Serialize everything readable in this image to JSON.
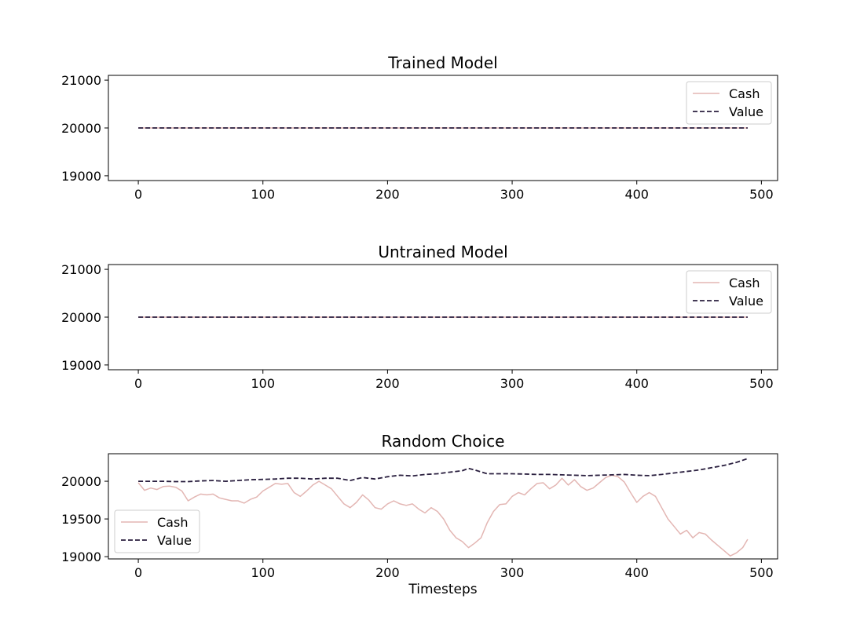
{
  "colors": {
    "cash": "#e3b6b3",
    "value": "#2a1f3f"
  },
  "chart_data": [
    {
      "type": "line",
      "title": "Trained Model",
      "xlabel": "",
      "ylabel": "",
      "xlim": [
        -24,
        513
      ],
      "ylim": [
        18900,
        21100
      ],
      "xticks": [
        0,
        100,
        200,
        300,
        400,
        500
      ],
      "yticks": [
        19000,
        20000,
        21000
      ],
      "legend": "upper right",
      "series": [
        {
          "name": "Cash",
          "style": "solid",
          "points": [
            [
              0,
              20000
            ],
            [
              489,
              20000
            ]
          ]
        },
        {
          "name": "Value",
          "style": "dashed",
          "points": [
            [
              0,
              20000
            ],
            [
              489,
              20000
            ]
          ]
        }
      ]
    },
    {
      "type": "line",
      "title": "Untrained Model",
      "xlabel": "",
      "ylabel": "",
      "xlim": [
        -24,
        513
      ],
      "ylim": [
        18900,
        21100
      ],
      "xticks": [
        0,
        100,
        200,
        300,
        400,
        500
      ],
      "yticks": [
        19000,
        20000,
        21000
      ],
      "legend": "upper right",
      "series": [
        {
          "name": "Cash",
          "style": "solid",
          "points": [
            [
              0,
              20000
            ],
            [
              489,
              20000
            ]
          ]
        },
        {
          "name": "Value",
          "style": "dashed",
          "points": [
            [
              0,
              20000
            ],
            [
              489,
              20000
            ]
          ]
        }
      ]
    },
    {
      "type": "line",
      "title": "Random Choice",
      "xlabel": "Timesteps",
      "ylabel": "",
      "xlim": [
        -24,
        513
      ],
      "ylim": [
        18970,
        20365
      ],
      "xticks": [
        0,
        100,
        200,
        300,
        400,
        500
      ],
      "yticks": [
        19000,
        19500,
        20000
      ],
      "legend": "lower left",
      "series": [
        {
          "name": "Cash",
          "style": "solid",
          "points": [
            [
              0,
              19980
            ],
            [
              5,
              19880
            ],
            [
              10,
              19910
            ],
            [
              15,
              19890
            ],
            [
              20,
              19930
            ],
            [
              25,
              19935
            ],
            [
              30,
              19920
            ],
            [
              35,
              19870
            ],
            [
              40,
              19740
            ],
            [
              45,
              19790
            ],
            [
              50,
              19830
            ],
            [
              55,
              19820
            ],
            [
              60,
              19830
            ],
            [
              65,
              19780
            ],
            [
              70,
              19760
            ],
            [
              75,
              19740
            ],
            [
              80,
              19740
            ],
            [
              85,
              19710
            ],
            [
              90,
              19760
            ],
            [
              95,
              19790
            ],
            [
              100,
              19870
            ],
            [
              105,
              19920
            ],
            [
              110,
              19970
            ],
            [
              115,
              19960
            ],
            [
              120,
              19970
            ],
            [
              125,
              19850
            ],
            [
              130,
              19800
            ],
            [
              135,
              19870
            ],
            [
              140,
              19950
            ],
            [
              145,
              20000
            ],
            [
              150,
              19950
            ],
            [
              155,
              19900
            ],
            [
              160,
              19800
            ],
            [
              165,
              19700
            ],
            [
              170,
              19650
            ],
            [
              175,
              19720
            ],
            [
              180,
              19820
            ],
            [
              185,
              19750
            ],
            [
              190,
              19650
            ],
            [
              195,
              19630
            ],
            [
              200,
              19700
            ],
            [
              205,
              19740
            ],
            [
              210,
              19700
            ],
            [
              215,
              19680
            ],
            [
              220,
              19700
            ],
            [
              225,
              19630
            ],
            [
              230,
              19580
            ],
            [
              235,
              19650
            ],
            [
              240,
              19600
            ],
            [
              245,
              19500
            ],
            [
              250,
              19350
            ],
            [
              255,
              19250
            ],
            [
              260,
              19200
            ],
            [
              265,
              19120
            ],
            [
              270,
              19180
            ],
            [
              275,
              19250
            ],
            [
              280,
              19450
            ],
            [
              285,
              19600
            ],
            [
              290,
              19690
            ],
            [
              295,
              19700
            ],
            [
              300,
              19800
            ],
            [
              305,
              19850
            ],
            [
              310,
              19820
            ],
            [
              315,
              19900
            ],
            [
              320,
              19970
            ],
            [
              325,
              19980
            ],
            [
              330,
              19900
            ],
            [
              335,
              19950
            ],
            [
              340,
              20040
            ],
            [
              345,
              19950
            ],
            [
              350,
              20020
            ],
            [
              355,
              19930
            ],
            [
              360,
              19880
            ],
            [
              365,
              19910
            ],
            [
              370,
              19980
            ],
            [
              375,
              20050
            ],
            [
              380,
              20080
            ],
            [
              385,
              20060
            ],
            [
              390,
              19990
            ],
            [
              395,
              19850
            ],
            [
              400,
              19720
            ],
            [
              405,
              19800
            ],
            [
              410,
              19850
            ],
            [
              415,
              19800
            ],
            [
              420,
              19650
            ],
            [
              425,
              19500
            ],
            [
              430,
              19400
            ],
            [
              435,
              19300
            ],
            [
              440,
              19350
            ],
            [
              445,
              19250
            ],
            [
              450,
              19320
            ],
            [
              455,
              19300
            ],
            [
              460,
              19220
            ],
            [
              465,
              19150
            ],
            [
              470,
              19080
            ],
            [
              475,
              19010
            ],
            [
              480,
              19050
            ],
            [
              485,
              19120
            ],
            [
              489,
              19230
            ]
          ]
        },
        {
          "name": "Value",
          "style": "dashed",
          "points": [
            [
              0,
              20000
            ],
            [
              10,
              20000
            ],
            [
              20,
              20000
            ],
            [
              30,
              19995
            ],
            [
              40,
              19995
            ],
            [
              50,
              20005
            ],
            [
              60,
              20010
            ],
            [
              70,
              20000
            ],
            [
              80,
              20010
            ],
            [
              90,
              20020
            ],
            [
              100,
              20025
            ],
            [
              110,
              20030
            ],
            [
              120,
              20040
            ],
            [
              130,
              20040
            ],
            [
              140,
              20030
            ],
            [
              150,
              20040
            ],
            [
              160,
              20040
            ],
            [
              170,
              20010
            ],
            [
              180,
              20050
            ],
            [
              190,
              20030
            ],
            [
              200,
              20060
            ],
            [
              210,
              20080
            ],
            [
              220,
              20070
            ],
            [
              230,
              20090
            ],
            [
              240,
              20100
            ],
            [
              250,
              20120
            ],
            [
              260,
              20140
            ],
            [
              265,
              20170
            ],
            [
              270,
              20150
            ],
            [
              280,
              20100
            ],
            [
              290,
              20100
            ],
            [
              300,
              20100
            ],
            [
              310,
              20095
            ],
            [
              320,
              20090
            ],
            [
              330,
              20090
            ],
            [
              340,
              20085
            ],
            [
              350,
              20080
            ],
            [
              360,
              20075
            ],
            [
              370,
              20080
            ],
            [
              380,
              20085
            ],
            [
              390,
              20090
            ],
            [
              400,
              20080
            ],
            [
              410,
              20075
            ],
            [
              420,
              20090
            ],
            [
              430,
              20110
            ],
            [
              440,
              20130
            ],
            [
              450,
              20150
            ],
            [
              460,
              20180
            ],
            [
              470,
              20210
            ],
            [
              480,
              20250
            ],
            [
              489,
              20300
            ]
          ]
        }
      ]
    }
  ]
}
